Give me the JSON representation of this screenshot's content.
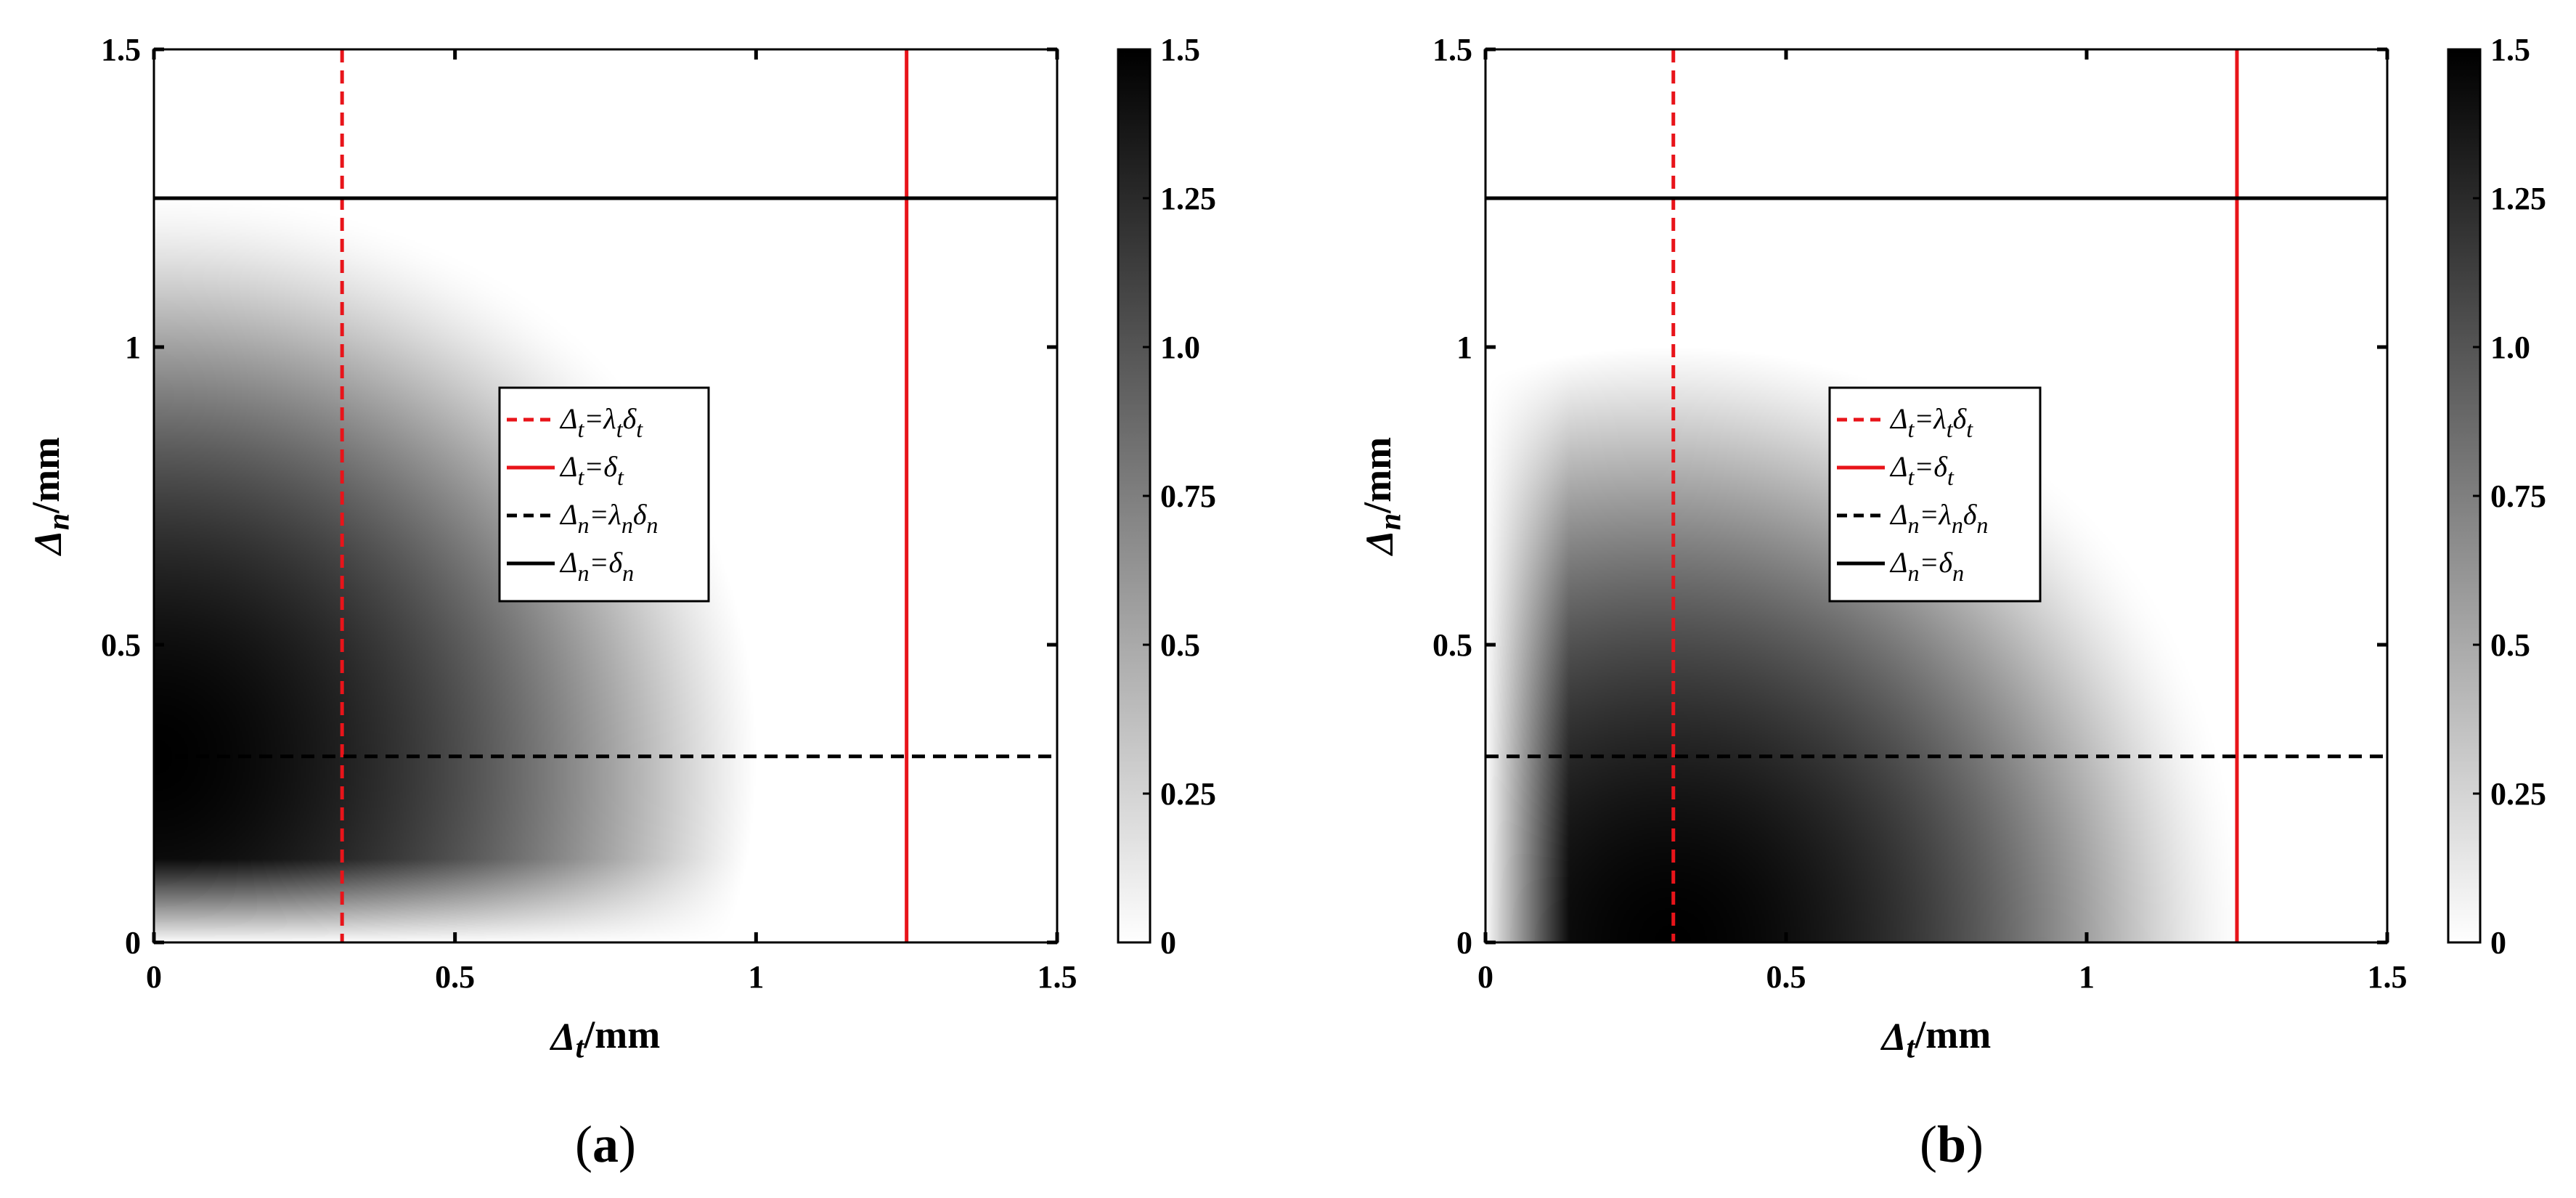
{
  "chart_data": [
    {
      "type": "heatmap",
      "panel_label": {
        "open": "(",
        "letter": "a",
        "close": ")"
      },
      "xlabel": {
        "sym": "Δ",
        "sub": "t",
        "unit": "/mm"
      },
      "ylabel": {
        "sym": "Δ",
        "sub": "n",
        "unit": "/mm"
      },
      "xlim": [
        0,
        1.5
      ],
      "ylim": [
        0,
        1.5
      ],
      "xticks": [
        "0",
        "0.5",
        "1",
        "1.5"
      ],
      "yticks": [
        "0",
        "0.5",
        "1",
        "1.5"
      ],
      "colorbar": {
        "range": [
          0,
          1.5
        ],
        "ticks": [
          "0",
          "0.25",
          "0.5",
          "0.75",
          "1.0",
          "1.25",
          "1.5"
        ],
        "colormap": "white-to-black"
      },
      "field": {
        "peak_at": [
          0.0,
          0.3125
        ],
        "peak_value": 1.5,
        "zero_at_n": 0,
        "zero_beyond": {
          "t": 1.25,
          "n": 1.25
        }
      },
      "lines": [
        {
          "name": "Δt=λtδt",
          "orientation": "vertical",
          "value": 0.3125,
          "color": "#e8141a",
          "style": "dashed",
          "label": [
            [
              "Δ",
              ""
            ],
            [
              "t",
              "sub"
            ],
            [
              "=λ",
              ""
            ],
            [
              "t",
              "sub"
            ],
            [
              "δ",
              ""
            ],
            [
              "t",
              "sub"
            ]
          ]
        },
        {
          "name": "Δt=δt",
          "orientation": "vertical",
          "value": 1.25,
          "color": "#e8141a",
          "style": "solid",
          "label": [
            [
              "Δ",
              ""
            ],
            [
              "t",
              "sub"
            ],
            [
              "=δ",
              ""
            ],
            [
              "t",
              "sub"
            ]
          ]
        },
        {
          "name": "Δn=λnδn",
          "orientation": "horizontal",
          "value": 0.3125,
          "color": "#000000",
          "style": "dashed",
          "label": [
            [
              "Δ",
              ""
            ],
            [
              "n",
              "sub"
            ],
            [
              "=λ",
              ""
            ],
            [
              "n",
              "sub"
            ],
            [
              "δ",
              ""
            ],
            [
              "n",
              "sub"
            ]
          ]
        },
        {
          "name": "Δn=δn",
          "orientation": "horizontal",
          "value": 1.25,
          "color": "#000000",
          "style": "solid",
          "label": [
            [
              "Δ",
              ""
            ],
            [
              "n",
              "sub"
            ],
            [
              "=δ",
              ""
            ],
            [
              "n",
              "sub"
            ]
          ]
        }
      ]
    },
    {
      "type": "heatmap",
      "panel_label": {
        "open": "(",
        "letter": "b",
        "close": ")"
      },
      "xlabel": {
        "sym": "Δ",
        "sub": "t",
        "unit": "/mm"
      },
      "ylabel": {
        "sym": "Δ",
        "sub": "n",
        "unit": "/mm"
      },
      "xlim": [
        0,
        1.5
      ],
      "ylim": [
        0,
        1.5
      ],
      "xticks": [
        "0",
        "0.5",
        "1",
        "1.5"
      ],
      "yticks": [
        "0",
        "0.5",
        "1",
        "1.5"
      ],
      "colorbar": {
        "range": [
          0,
          1.5
        ],
        "ticks": [
          "0",
          "0.25",
          "0.5",
          "0.75",
          "1.0",
          "1.25",
          "1.5"
        ],
        "colormap": "white-to-black"
      },
      "field": {
        "peak_at": [
          0.3125,
          0.0
        ],
        "peak_value": 1.5,
        "zero_at_t": 0,
        "zero_beyond": {
          "t": 1.25,
          "n": 1.25
        }
      },
      "lines": [
        {
          "name": "Δt=λtδt",
          "orientation": "vertical",
          "value": 0.3125,
          "color": "#e8141a",
          "style": "dashed",
          "label": [
            [
              "Δ",
              ""
            ],
            [
              "t",
              "sub"
            ],
            [
              "=λ",
              ""
            ],
            [
              "t",
              "sub"
            ],
            [
              "δ",
              ""
            ],
            [
              "t",
              "sub"
            ]
          ]
        },
        {
          "name": "Δt=δt",
          "orientation": "vertical",
          "value": 1.25,
          "color": "#e8141a",
          "style": "solid",
          "label": [
            [
              "Δ",
              ""
            ],
            [
              "t",
              "sub"
            ],
            [
              "=δ",
              ""
            ],
            [
              "t",
              "sub"
            ]
          ]
        },
        {
          "name": "Δn=λnδn",
          "orientation": "horizontal",
          "value": 0.3125,
          "color": "#000000",
          "style": "dashed",
          "label": [
            [
              "Δ",
              ""
            ],
            [
              "n",
              "sub"
            ],
            [
              "=λ",
              ""
            ],
            [
              "n",
              "sub"
            ],
            [
              "δ",
              ""
            ],
            [
              "n",
              "sub"
            ]
          ]
        },
        {
          "name": "Δn=δn",
          "orientation": "horizontal",
          "value": 1.25,
          "color": "#000000",
          "style": "solid",
          "label": [
            [
              "Δ",
              ""
            ],
            [
              "n",
              "sub"
            ],
            [
              "=δ",
              ""
            ],
            [
              "n",
              "sub"
            ]
          ]
        }
      ]
    }
  ]
}
